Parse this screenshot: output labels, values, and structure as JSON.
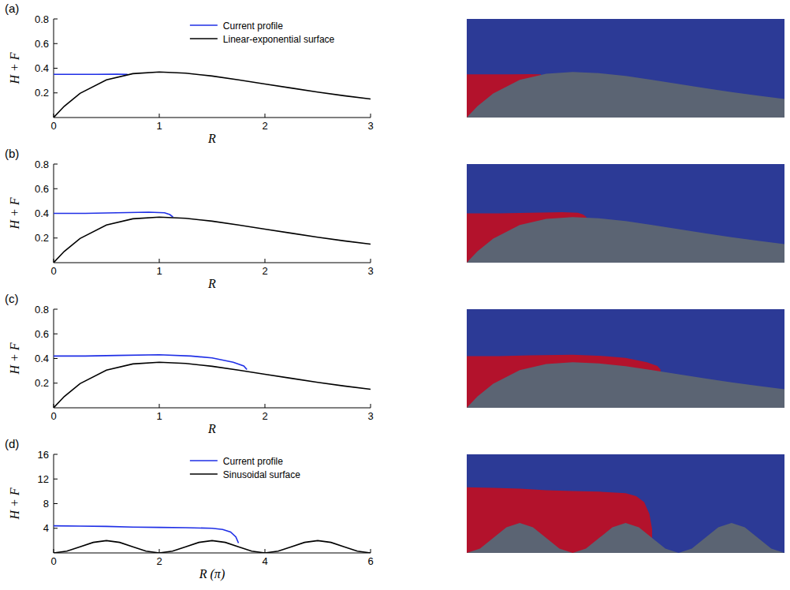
{
  "chart_data": [
    {
      "type": "line",
      "title": "(a)",
      "x_label": "R",
      "y_label": "H + F",
      "xlim": [
        0,
        3
      ],
      "ylim": [
        0,
        0.8
      ],
      "xticks": [
        0,
        1,
        2,
        3
      ],
      "yticks": [
        0.2,
        0.4,
        0.6,
        0.8
      ],
      "legend": "top",
      "grid": false,
      "series": [
        {
          "name": "Current profile",
          "color": "#1f2fe6",
          "x": [
            0,
            0.2,
            0.4,
            0.6,
            0.7
          ],
          "values": [
            0.35,
            0.35,
            0.35,
            0.352,
            0.35
          ]
        },
        {
          "name": "Linear-exponential surface",
          "color": "#000000",
          "x": [
            0,
            0.1,
            0.25,
            0.5,
            0.75,
            1,
            1.25,
            1.5,
            1.75,
            2,
            2.25,
            2.5,
            2.75,
            3
          ],
          "values": [
            0,
            0.091,
            0.196,
            0.305,
            0.356,
            0.37,
            0.36,
            0.337,
            0.306,
            0.272,
            0.239,
            0.206,
            0.177,
            0.15
          ]
        }
      ]
    },
    {
      "type": "line",
      "title": "(b)",
      "x_label": "R",
      "y_label": "H + F",
      "xlim": [
        0,
        3
      ],
      "ylim": [
        0,
        0.8
      ],
      "xticks": [
        0,
        1,
        2,
        3
      ],
      "yticks": [
        0.2,
        0.4,
        0.6,
        0.8
      ],
      "grid": false,
      "series": [
        {
          "color": "#1f2fe6",
          "x": [
            0,
            0.3,
            0.6,
            0.9,
            1.05,
            1.1,
            1.13
          ],
          "values": [
            0.4,
            0.4,
            0.405,
            0.41,
            0.405,
            0.39,
            0.37
          ]
        },
        {
          "color": "#000000",
          "x": [
            0,
            0.1,
            0.25,
            0.5,
            0.75,
            1,
            1.25,
            1.5,
            1.75,
            2,
            2.25,
            2.5,
            2.75,
            3
          ],
          "values": [
            0,
            0.091,
            0.196,
            0.305,
            0.356,
            0.37,
            0.36,
            0.337,
            0.306,
            0.272,
            0.239,
            0.206,
            0.177,
            0.15
          ]
        }
      ]
    },
    {
      "type": "line",
      "title": "(c)",
      "x_label": "R",
      "y_label": "H + F",
      "xlim": [
        0,
        3
      ],
      "ylim": [
        0,
        0.8
      ],
      "xticks": [
        0,
        1,
        2,
        3
      ],
      "yticks": [
        0.2,
        0.4,
        0.6,
        0.8
      ],
      "grid": false,
      "series": [
        {
          "color": "#1f2fe6",
          "x": [
            0,
            0.3,
            0.6,
            1,
            1.3,
            1.5,
            1.7,
            1.8,
            1.83
          ],
          "values": [
            0.42,
            0.42,
            0.425,
            0.43,
            0.42,
            0.405,
            0.37,
            0.34,
            0.31
          ]
        },
        {
          "color": "#000000",
          "x": [
            0,
            0.1,
            0.25,
            0.5,
            0.75,
            1,
            1.25,
            1.5,
            1.75,
            2,
            2.25,
            2.5,
            2.75,
            3
          ],
          "values": [
            0,
            0.091,
            0.196,
            0.305,
            0.356,
            0.37,
            0.36,
            0.337,
            0.306,
            0.272,
            0.239,
            0.206,
            0.177,
            0.15
          ]
        }
      ]
    },
    {
      "type": "line",
      "title": "(d)",
      "x_label": "R (π)",
      "y_label": "H + F",
      "xlim": [
        0,
        6
      ],
      "ylim": [
        0,
        16
      ],
      "xticks": [
        0,
        2,
        4,
        6
      ],
      "yticks": [
        4,
        8,
        12,
        16
      ],
      "legend": "top",
      "grid": false,
      "series": [
        {
          "name": "Current profile",
          "color": "#1f2fe6",
          "x": [
            0,
            0.5,
            1,
            1.5,
            2,
            2.5,
            3,
            3.2,
            3.35,
            3.45,
            3.5
          ],
          "values": [
            4.4,
            4.35,
            4.3,
            4.2,
            4.15,
            4.1,
            4.0,
            3.8,
            3.4,
            2.6,
            1.6
          ]
        },
        {
          "name": "Sinusoidal surface",
          "color": "#000000",
          "x": [
            0,
            0.25,
            0.5,
            0.75,
            1,
            1.25,
            1.5,
            1.75,
            2,
            2.25,
            2.5,
            2.75,
            3,
            3.25,
            3.5,
            3.75,
            4,
            4.25,
            4.5,
            4.75,
            5,
            5.25,
            5.5,
            5.75,
            6
          ],
          "values": [
            0,
            0.29,
            1,
            1.71,
            2,
            1.71,
            1,
            0.29,
            0,
            0.29,
            1,
            1.71,
            2,
            1.71,
            1,
            0.29,
            0,
            0.29,
            1,
            1.71,
            2,
            1.71,
            1,
            0.29,
            0
          ]
        }
      ]
    }
  ]
}
